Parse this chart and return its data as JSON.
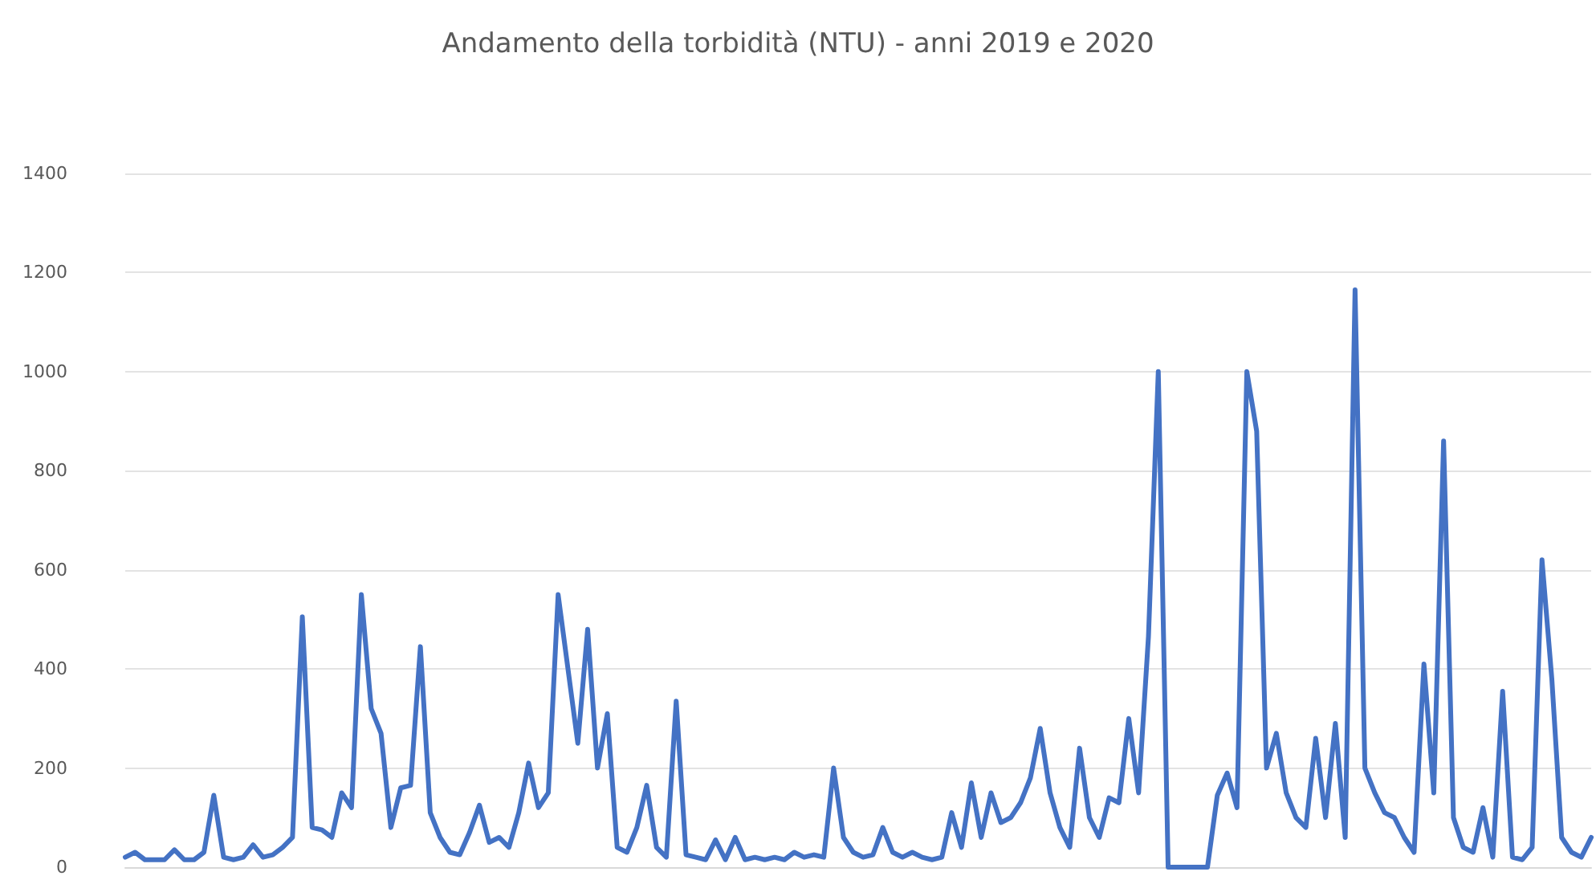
{
  "chart_data": {
    "type": "line",
    "title": "Andamento della torbidità (NTU) - anni 2019 e 2020",
    "categories": [
      null,
      null,
      null,
      null,
      null,
      null,
      null,
      null,
      null,
      null,
      null,
      null,
      null,
      null,
      null,
      null,
      null,
      null,
      null,
      null,
      null,
      null,
      null,
      null,
      null,
      null,
      null,
      null,
      null,
      null,
      null,
      null,
      null,
      null,
      null,
      null,
      null,
      null,
      null,
      null,
      null,
      null,
      null,
      null,
      null,
      null,
      null,
      null,
      null,
      null,
      null,
      null,
      null,
      null,
      null,
      null,
      null,
      null,
      null,
      null,
      null,
      null,
      null,
      null,
      null,
      null,
      null,
      null,
      null,
      null,
      null,
      null,
      null,
      null,
      null,
      null,
      null,
      null,
      null,
      null,
      null,
      null,
      null,
      null,
      null,
      null,
      null,
      null,
      null,
      null,
      null,
      null,
      null,
      null,
      null,
      null,
      null,
      null,
      null,
      null,
      null,
      null,
      null,
      null,
      null,
      null,
      null,
      null,
      null,
      null,
      null,
      null,
      null,
      null,
      null,
      null,
      null,
      null,
      null,
      null,
      null,
      null,
      null,
      null,
      null,
      null,
      null,
      null,
      null,
      null,
      null,
      null,
      null,
      null,
      null,
      null,
      null,
      null,
      null,
      null,
      null,
      null,
      null,
      null,
      null,
      null,
      null,
      null,
      null,
      null
    ],
    "series": [
      {
        "color": "#4472c4",
        "values": [
          20,
          30,
          15,
          15,
          15,
          35,
          15,
          15,
          30,
          145,
          20,
          15,
          20,
          45,
          20,
          25,
          40,
          60,
          505,
          80,
          75,
          60,
          150,
          120,
          550,
          320,
          270,
          80,
          160,
          165,
          445,
          110,
          60,
          30,
          25,
          70,
          125,
          50,
          60,
          40,
          110,
          210,
          120,
          150,
          550,
          400,
          250,
          480,
          200,
          310,
          40,
          30,
          80,
          165,
          40,
          20,
          335,
          25,
          20,
          15,
          55,
          15,
          60,
          15,
          20,
          15,
          20,
          15,
          30,
          20,
          25,
          20,
          200,
          60,
          30,
          20,
          25,
          80,
          30,
          20,
          30,
          20,
          15,
          20,
          110,
          40,
          170,
          60,
          150,
          90,
          100,
          130,
          180,
          280,
          150,
          80,
          40,
          240,
          100,
          60,
          140,
          130,
          300,
          150,
          465,
          1000,
          0,
          0,
          0,
          0,
          0,
          145,
          190,
          120,
          1000,
          880,
          200,
          270,
          150,
          100,
          80,
          260,
          100,
          290,
          60,
          1165,
          200,
          150,
          110,
          100,
          60,
          30,
          410,
          150,
          860,
          100,
          40,
          30,
          120,
          20,
          355,
          20,
          15,
          40,
          620,
          380,
          60,
          30,
          20,
          60
        ]
      }
    ],
    "ylim": [
      0,
      1400
    ],
    "yticks": [
      0,
      200,
      400,
      600,
      800,
      1000,
      1200,
      1400
    ],
    "grid": "y",
    "marker": "none",
    "line_style": "solid"
  }
}
